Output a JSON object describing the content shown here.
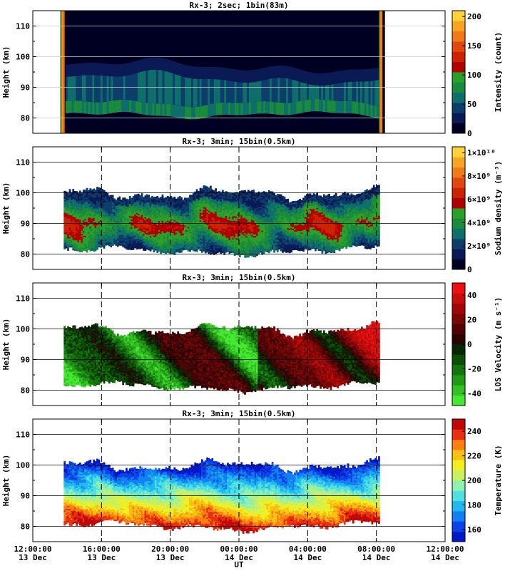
{
  "chart_data": [
    {
      "type": "heatmap",
      "title": "Rx-3;  2sec; 1bin(83m)",
      "ylabel": "Height (km)",
      "colorbar_label": "Intensity (count)",
      "ylim": [
        75,
        115
      ],
      "yticks": [
        80,
        90,
        100,
        110
      ],
      "xlim_hours": [
        0,
        24
      ],
      "colorbar_range": [
        0,
        210
      ],
      "colorbar_ticks": [
        0,
        50,
        100,
        150,
        200
      ],
      "colorbar_colors": [
        "#000022",
        "#0a1a55",
        "#0d3d6b",
        "#0e6f6a",
        "#1a8a3c",
        "#2aa02a",
        "#b00000",
        "#cc2200",
        "#e04810",
        "#ee7a18",
        "#f7a424",
        "#ffd23c"
      ],
      "data_extent_hours": [
        1.6,
        20.5
      ],
      "height_extent_km": [
        77,
        98
      ]
    },
    {
      "type": "heatmap",
      "title": "Rx-3; 3min; 15bin(0.5km)",
      "ylabel": "Height (km)",
      "colorbar_label": "Sodium density (m⁻³)",
      "ylim": [
        75,
        115
      ],
      "yticks": [
        80,
        90,
        100,
        110
      ],
      "colorbar_range": [
        0,
        10500000000.0
      ],
      "colorbar_ticks": [
        "0",
        "2×10⁹",
        "4×10⁹",
        "6×10⁹",
        "8×10⁹",
        "1×10¹⁰"
      ],
      "colorbar_colors": [
        "#000022",
        "#0a1a55",
        "#0d3d6b",
        "#0e6f6a",
        "#1a8a3c",
        "#2aa02a",
        "#b00000",
        "#cc2200",
        "#e04810",
        "#ee7a18",
        "#f7a424",
        "#ffd23c"
      ],
      "data_extent_hours": [
        1.8,
        20.2
      ],
      "height_extent_km": [
        79,
        102
      ]
    },
    {
      "type": "heatmap",
      "title": "Rx-3; 3min; 15bin(0.5km)",
      "ylabel": "Height (km)",
      "colorbar_label": "LOS Velocity (m s⁻¹)",
      "ylim": [
        75,
        115
      ],
      "yticks": [
        80,
        90,
        100,
        110
      ],
      "colorbar_range": [
        -50,
        50
      ],
      "colorbar_ticks": [
        -40,
        -20,
        0,
        20,
        40
      ],
      "colorbar_colors": [
        "#44e830",
        "#32c022",
        "#229a18",
        "#16740e",
        "#0c4e06",
        "#062804",
        "#2a0404",
        "#520404",
        "#7a0606",
        "#a00808",
        "#c80c0c",
        "#ee1010"
      ],
      "data_extent_hours": [
        1.8,
        20.2
      ],
      "height_extent_km": [
        79,
        102
      ]
    },
    {
      "type": "heatmap",
      "title": "Rx-3; 3min; 15bin(0.5km)",
      "ylabel": "Height (km)",
      "xlabel": "UT",
      "colorbar_label": "Temperature (K)",
      "ylim": [
        75,
        115
      ],
      "yticks": [
        80,
        90,
        100,
        110
      ],
      "colorbar_range": [
        150,
        250
      ],
      "colorbar_ticks": [
        160,
        180,
        200,
        220,
        240
      ],
      "colorbar_colors": [
        "#0018c8",
        "#0a44e8",
        "#1280f0",
        "#20b8f0",
        "#50e0e0",
        "#90f0b0",
        "#c8f060",
        "#f0f020",
        "#f8c010",
        "#f88010",
        "#e83010",
        "#c00808"
      ],
      "data_extent_hours": [
        1.8,
        20.2
      ],
      "height_extent_km": [
        78,
        102
      ],
      "xticks": [
        {
          "hour": 0,
          "time": "12:00:00",
          "date": "13 Dec"
        },
        {
          "hour": 4,
          "time": "16:00:00",
          "date": "13 Dec"
        },
        {
          "hour": 8,
          "time": "20:00:00",
          "date": "13 Dec"
        },
        {
          "hour": 12,
          "time": "00:00:00",
          "date": "14 Dec"
        },
        {
          "hour": 16,
          "time": "04:00:00",
          "date": "14 Dec"
        },
        {
          "hour": 20,
          "time": "08:00:00",
          "date": "14 Dec"
        },
        {
          "hour": 24,
          "time": "12:00:00",
          "date": "14 Dec"
        }
      ]
    }
  ]
}
